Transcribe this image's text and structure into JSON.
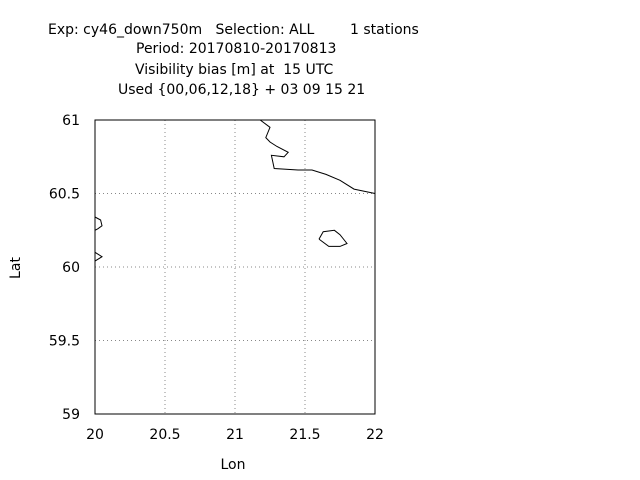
{
  "header": {
    "line1_left": "Exp: cy46_down750m   Selection: ALL",
    "line1_right": "1 stations",
    "line2": "Period: 20170810-20170813",
    "line3": "Visibility bias [m] at  15 UTC",
    "line4": "Used {00,06,12,18} + 03 09 15 21"
  },
  "chart_data": {
    "type": "map",
    "xlabel": "Lon",
    "ylabel": "Lat",
    "xlim": [
      20,
      22
    ],
    "ylim": [
      59,
      61
    ],
    "grid": true,
    "xticks": [
      "20",
      "20.5",
      "21",
      "21.5",
      "22"
    ],
    "yticks": [
      "59",
      "59.5",
      "60",
      "60.5",
      "61"
    ],
    "xtick_values": [
      20,
      20.5,
      21,
      21.5,
      22
    ],
    "ytick_values": [
      59,
      59.5,
      60,
      60.5,
      61
    ],
    "coastlines": [
      {
        "name": "mainland-coast",
        "points": [
          [
            21.18,
            61.0
          ],
          [
            21.25,
            60.95
          ],
          [
            21.22,
            60.88
          ],
          [
            21.25,
            60.85
          ],
          [
            21.3,
            60.82
          ],
          [
            21.38,
            60.78
          ],
          [
            21.35,
            60.75
          ],
          [
            21.26,
            60.76
          ],
          [
            21.28,
            60.67
          ],
          [
            21.45,
            60.66
          ],
          [
            21.55,
            60.66
          ],
          [
            21.65,
            60.63
          ],
          [
            21.75,
            60.59
          ],
          [
            21.85,
            60.53
          ],
          [
            22.0,
            60.5
          ]
        ]
      },
      {
        "name": "west-coast-upper",
        "points": [
          [
            20.0,
            60.34
          ],
          [
            20.04,
            60.32
          ],
          [
            20.05,
            60.28
          ],
          [
            20.02,
            60.26
          ],
          [
            20.0,
            60.25
          ]
        ]
      },
      {
        "name": "west-coast-lower",
        "points": [
          [
            20.0,
            60.1
          ],
          [
            20.05,
            60.07
          ],
          [
            20.0,
            60.04
          ]
        ]
      },
      {
        "name": "island",
        "points": [
          [
            21.6,
            60.19
          ],
          [
            21.63,
            60.24
          ],
          [
            21.71,
            60.25
          ],
          [
            21.75,
            60.22
          ],
          [
            21.8,
            60.16
          ],
          [
            21.75,
            60.14
          ],
          [
            21.67,
            60.14
          ],
          [
            21.6,
            60.19
          ]
        ]
      }
    ]
  }
}
